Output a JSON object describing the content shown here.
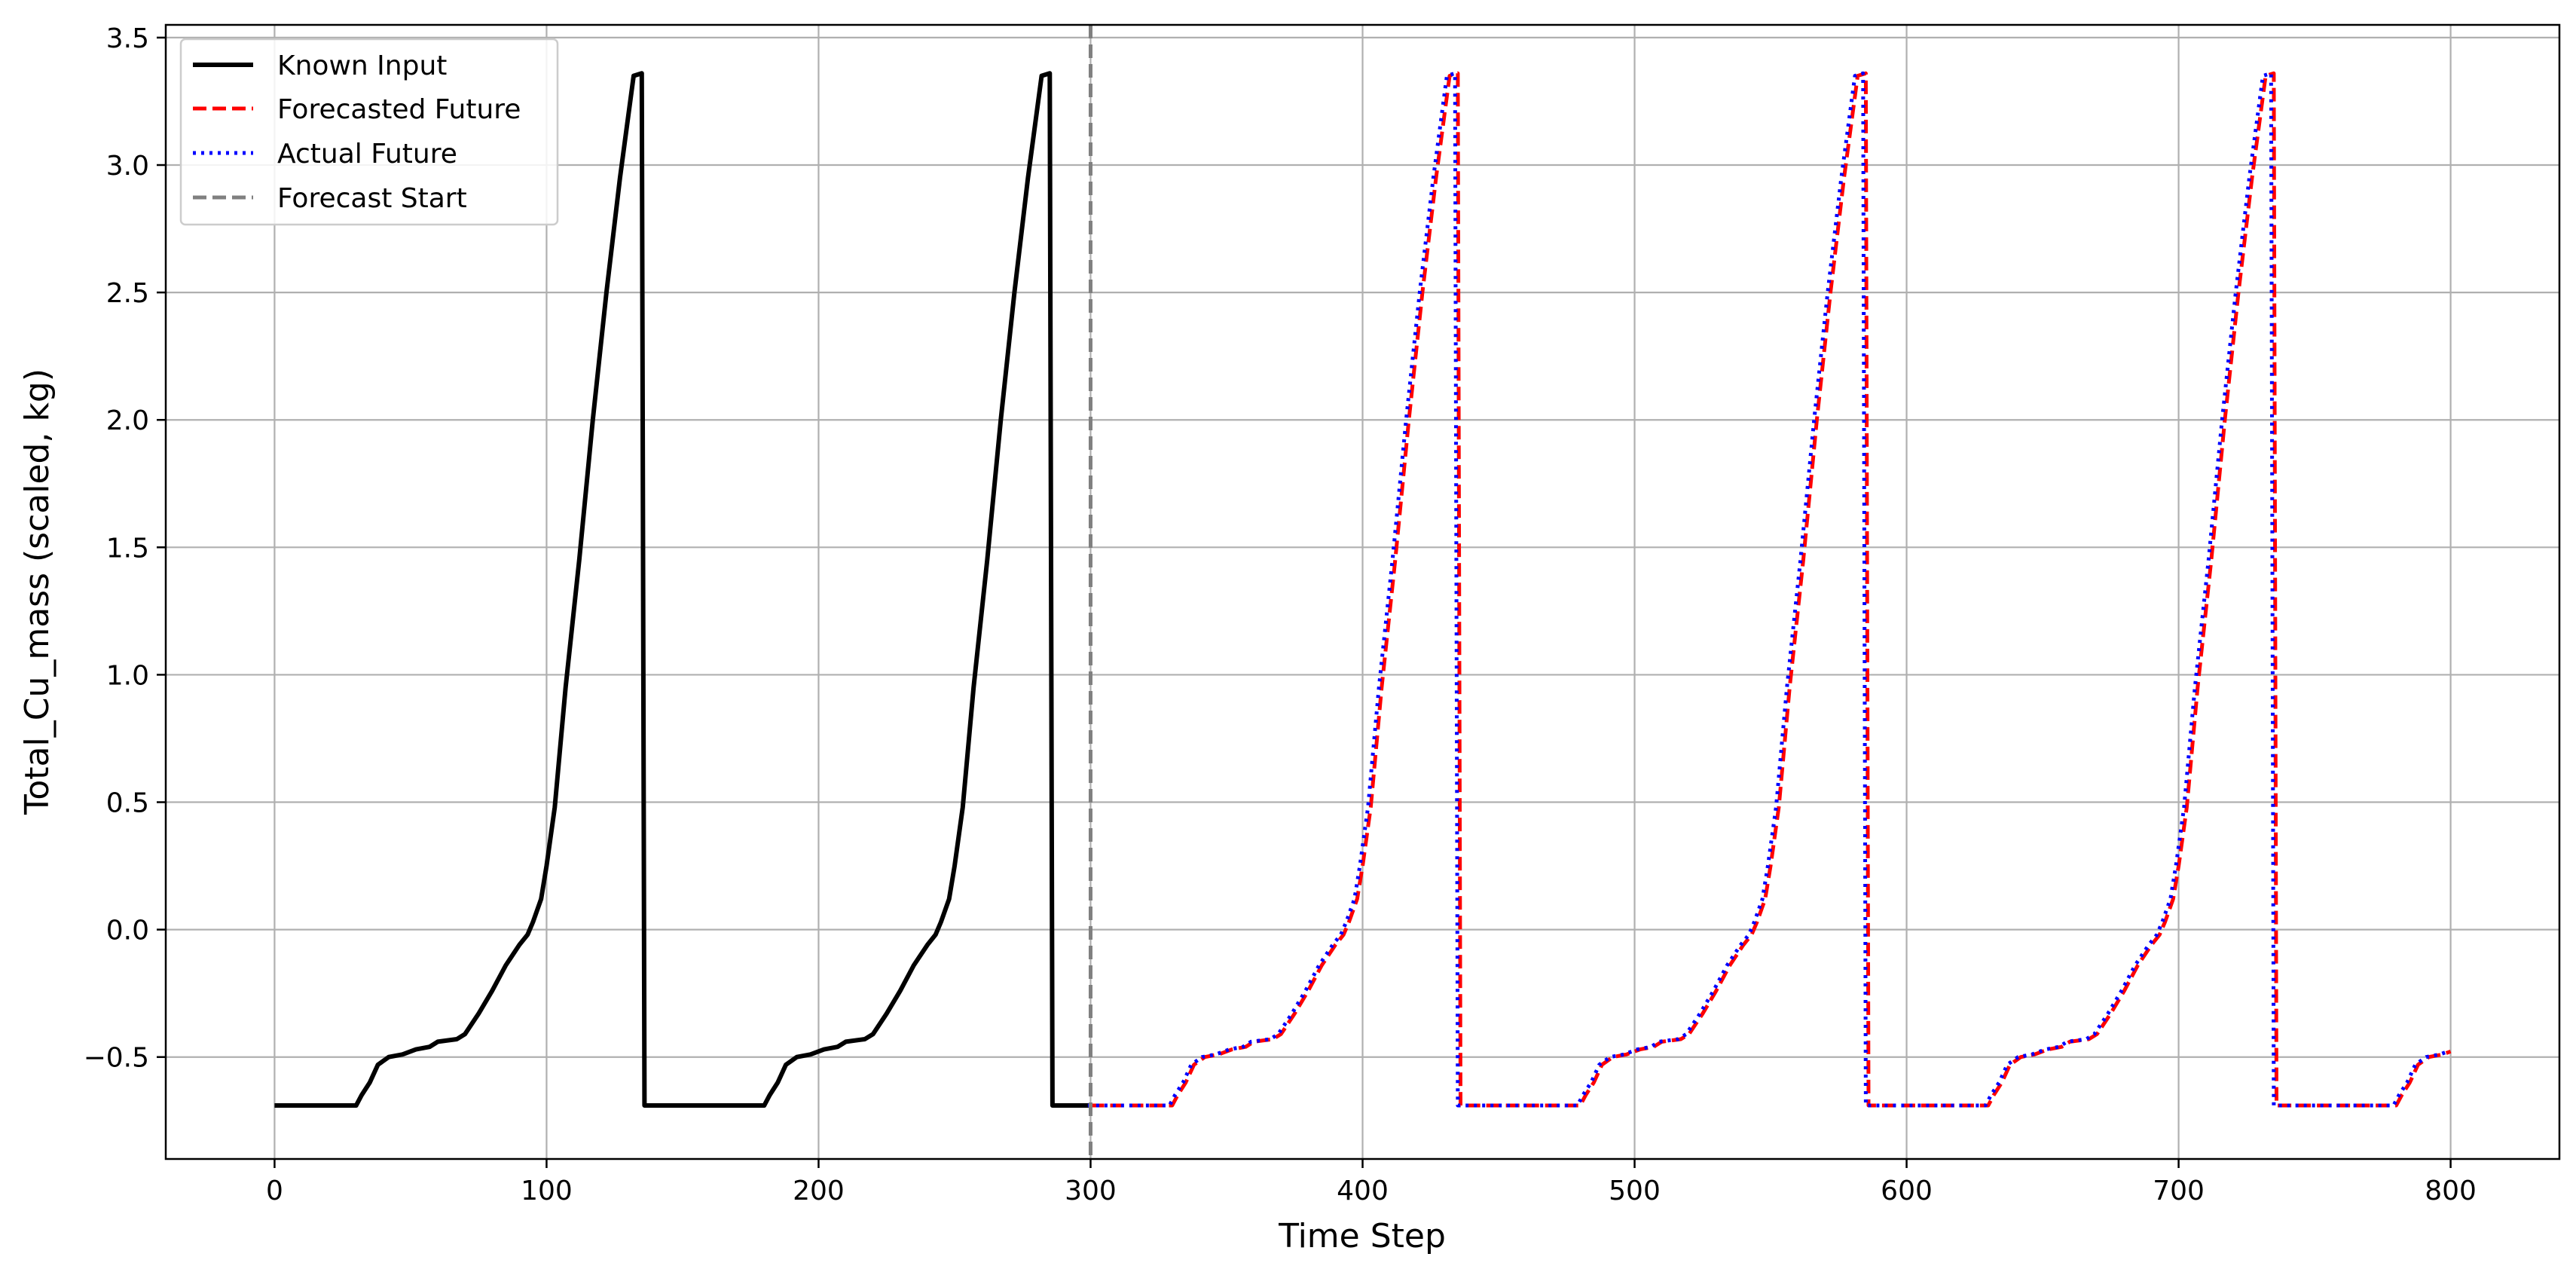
{
  "chart_data": {
    "type": "line",
    "xlabel": "Time Step",
    "ylabel": "Total_Cu_mass (scaled, kg)",
    "xlim": [
      -40,
      840
    ],
    "ylim": [
      -0.9,
      3.55
    ],
    "xticks": [
      0,
      100,
      200,
      300,
      400,
      500,
      600,
      700,
      800
    ],
    "yticks": [
      -0.5,
      0.0,
      0.5,
      1.0,
      1.5,
      2.0,
      2.5,
      3.0,
      3.5
    ],
    "xtick_labels": [
      "0",
      "100",
      "200",
      "300",
      "400",
      "500",
      "600",
      "700",
      "800"
    ],
    "ytick_labels": [
      "−0.5",
      "0.0",
      "0.5",
      "1.0",
      "1.5",
      "2.0",
      "2.5",
      "3.0",
      "3.5"
    ],
    "grid": true,
    "legend_position": "top-left",
    "forecast_start": 300,
    "cycle_profile": {
      "offsets": [
        0,
        30,
        32,
        35,
        38,
        42,
        47,
        52,
        57,
        60,
        67,
        70,
        75,
        80,
        85,
        90,
        93,
        95,
        98,
        100,
        103,
        107,
        112,
        117,
        122,
        127,
        132,
        135,
        136,
        150
      ],
      "values": [
        -0.69,
        -0.69,
        -0.65,
        -0.6,
        -0.53,
        -0.5,
        -0.49,
        -0.47,
        -0.46,
        -0.44,
        -0.43,
        -0.41,
        -0.33,
        -0.24,
        -0.14,
        -0.06,
        -0.02,
        0.03,
        0.12,
        0.25,
        0.48,
        0.95,
        1.45,
        2.0,
        2.5,
        2.95,
        3.35,
        3.36,
        -0.69,
        -0.69
      ]
    },
    "series": [
      {
        "name": "Known Input",
        "x_range": [
          0,
          300
        ],
        "color": "#000000",
        "dash": "solid"
      },
      {
        "name": "Forecasted Future",
        "x_range": [
          300,
          800
        ],
        "color": "#ff0000",
        "dash": "dashed"
      },
      {
        "name": "Actual Future",
        "x_range": [
          300,
          800
        ],
        "color": "#0000ff",
        "dash": "dotted"
      },
      {
        "name": "Forecast Start",
        "x": 300,
        "color": "#808080",
        "dash": "dashed"
      }
    ]
  }
}
